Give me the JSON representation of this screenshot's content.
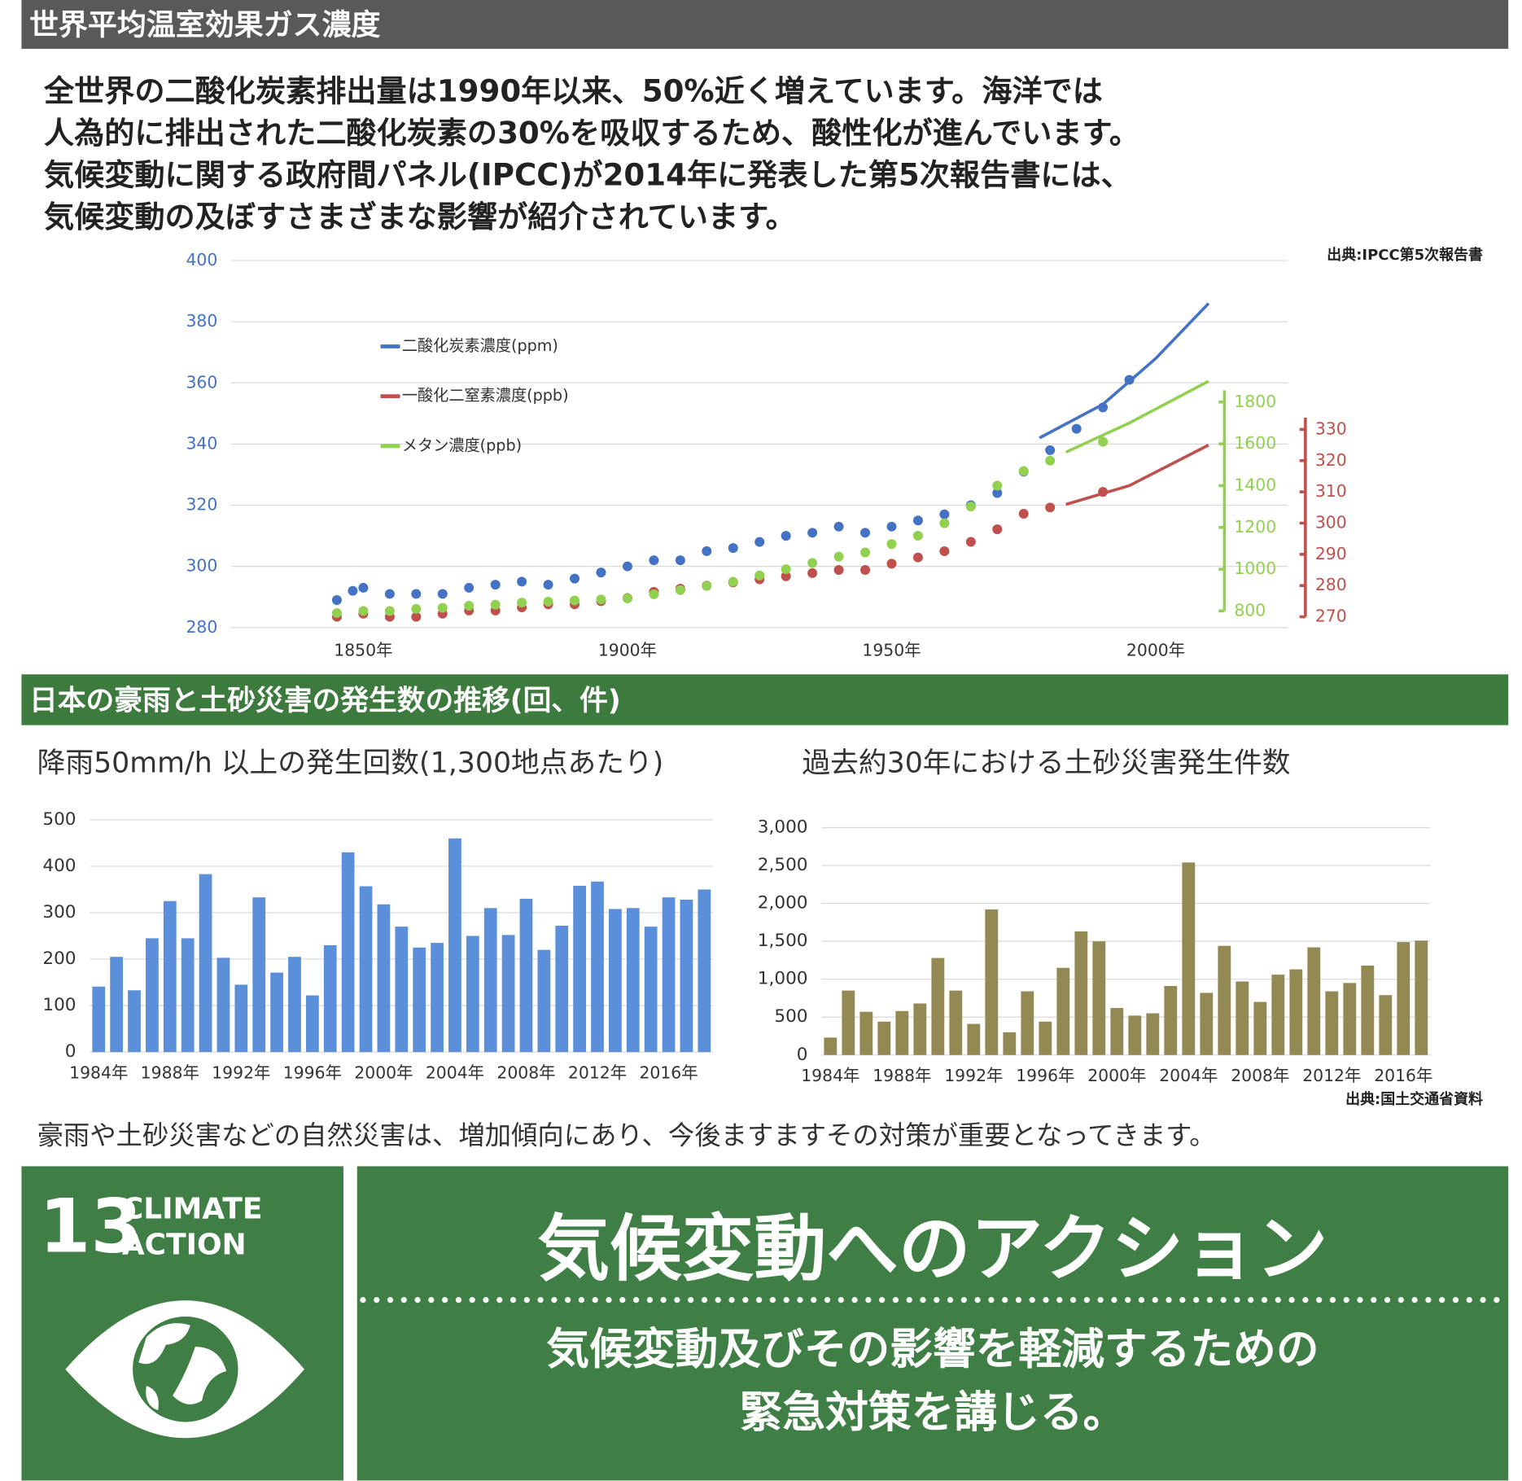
{
  "header1": "世界平均温室効果ガス濃度",
  "intro": [
    "全世界の二酸化炭素排出量は1990年以来、50%近く増えています。海洋では",
    "人為的に排出された二酸化炭素の30%を吸収するため、酸性化が進んでいます。",
    "気候変動に関する政府間パネル(IPCC)が2014年に発表した第5次報告書には、",
    "気候変動の及ぼすさまざまな影響が紹介されています。"
  ],
  "source1": "出典:IPCC第5次報告書",
  "header2": "日本の豪雨と土砂災害の発生数の推移(回、件)",
  "chart_data": [
    {
      "type": "scatter",
      "xlim": [
        1825,
        2025
      ],
      "xticks": [
        {
          "value": 1850,
          "label": "1850年"
        },
        {
          "value": 1900,
          "label": "1900年"
        },
        {
          "value": 1950,
          "label": "1950年"
        },
        {
          "value": 2000,
          "label": "2000年"
        }
      ],
      "ylim": [
        280,
        400
      ],
      "yticks": [
        280,
        300,
        320,
        340,
        360,
        380,
        400
      ],
      "y2lim": [
        800,
        1800
      ],
      "y2ticks": [
        800,
        1000,
        1200,
        1400,
        1600,
        1800
      ],
      "y3lim": [
        270,
        330
      ],
      "y3ticks": [
        270,
        280,
        290,
        300,
        310,
        320,
        330
      ],
      "grid": true,
      "series": [
        {
          "name": "二酸化炭素濃度(ppm)",
          "color": "#4472c4",
          "axis": "y",
          "x": [
            1845,
            1848,
            1850,
            1855,
            1860,
            1865,
            1870,
            1875,
            1880,
            1885,
            1890,
            1895,
            1900,
            1905,
            1910,
            1915,
            1920,
            1925,
            1930,
            1935,
            1940,
            1945,
            1950,
            1955,
            1960,
            1965,
            1970,
            1975,
            1980,
            1985,
            1990,
            1995
          ],
          "values": [
            289,
            292,
            293,
            291,
            291,
            291,
            293,
            294,
            295,
            294,
            296,
            298,
            300,
            302,
            302,
            305,
            306,
            308,
            310,
            311,
            313,
            311,
            313,
            315,
            317,
            320,
            324,
            331,
            338,
            345,
            352,
            361
          ],
          "line_x": [
            1978,
            1990,
            2000,
            2010
          ],
          "line_values": [
            342,
            353,
            368,
            386
          ]
        },
        {
          "name": "一酸化二窒素濃度(ppb)",
          "color": "#c0504d",
          "axis": "y3",
          "x": [
            1845,
            1850,
            1855,
            1860,
            1865,
            1870,
            1875,
            1880,
            1885,
            1890,
            1895,
            1900,
            1905,
            1910,
            1915,
            1920,
            1925,
            1930,
            1935,
            1940,
            1945,
            1950,
            1955,
            1960,
            1965,
            1970,
            1975,
            1980,
            1990
          ],
          "values": [
            270,
            271,
            270,
            270,
            271,
            272,
            272,
            273,
            274,
            274,
            275,
            276,
            278,
            279,
            280,
            281,
            282,
            283,
            284,
            285,
            285,
            287,
            289,
            291,
            294,
            298,
            303,
            305,
            310
          ],
          "line_x": [
            1983,
            1995,
            2010
          ],
          "line_values": [
            306,
            312,
            325
          ]
        },
        {
          "name": "メタン濃度(ppb)",
          "color": "#92d050",
          "axis": "y2",
          "x": [
            1845,
            1850,
            1855,
            1860,
            1865,
            1870,
            1875,
            1880,
            1885,
            1890,
            1895,
            1900,
            1905,
            1910,
            1915,
            1920,
            1925,
            1930,
            1935,
            1940,
            1945,
            1950,
            1955,
            1960,
            1965,
            1970,
            1975,
            1980,
            1990
          ],
          "values": [
            790,
            800,
            800,
            810,
            815,
            825,
            830,
            840,
            845,
            850,
            855,
            860,
            880,
            900,
            920,
            940,
            970,
            1000,
            1030,
            1060,
            1080,
            1120,
            1160,
            1220,
            1300,
            1400,
            1470,
            1520,
            1610
          ],
          "line_x": [
            1983,
            1995,
            2010
          ],
          "line_values": [
            1560,
            1700,
            1900
          ]
        }
      ]
    },
    {
      "type": "bar",
      "title": "降雨50mm/h 以上の発生回数(1,300地点あたり)",
      "color": "#5b8fd9",
      "categories": [
        "1984年",
        null,
        null,
        null,
        "1988年",
        null,
        null,
        null,
        "1992年",
        null,
        null,
        null,
        "1996年",
        null,
        null,
        null,
        "2000年",
        null,
        null,
        null,
        "2004年",
        null,
        null,
        null,
        "2008年",
        null,
        null,
        null,
        "2012年",
        null,
        null,
        null,
        "2016年",
        null,
        null
      ],
      "values": [
        141,
        205,
        133,
        245,
        325,
        245,
        383,
        203,
        145,
        333,
        171,
        205,
        122,
        230,
        430,
        357,
        318,
        270,
        225,
        235,
        460,
        250,
        310,
        252,
        330,
        220,
        272,
        358,
        367,
        308,
        310,
        270,
        333,
        328,
        350
      ],
      "ylim": [
        0,
        500
      ],
      "yticks": [
        0,
        100,
        200,
        300,
        400,
        500
      ],
      "grid": true
    },
    {
      "type": "bar",
      "title": "過去約30年における土砂災害発生件数",
      "color": "#938953",
      "categories": [
        "1984年",
        null,
        null,
        null,
        "1988年",
        null,
        null,
        null,
        "1992年",
        null,
        null,
        null,
        "1996年",
        null,
        null,
        null,
        "2000年",
        null,
        null,
        null,
        "2004年",
        null,
        null,
        null,
        "2008年",
        null,
        null,
        null,
        "2012年",
        null,
        null,
        null,
        "2016年",
        null
      ],
      "values": [
        230,
        850,
        570,
        440,
        580,
        680,
        1280,
        850,
        410,
        1920,
        300,
        840,
        440,
        1150,
        1630,
        1500,
        620,
        520,
        550,
        910,
        2540,
        820,
        1440,
        970,
        700,
        1060,
        1130,
        1420,
        840,
        950,
        1180,
        790,
        1490,
        1510
      ],
      "ylim": [
        0,
        3000
      ],
      "yticks": [
        0,
        {
          "value": 500,
          "label": "500"
        },
        {
          "value": 1000,
          "label": "1,000"
        },
        {
          "value": 1500,
          "label": "1,500"
        },
        {
          "value": 2000,
          "label": "2,000"
        },
        {
          "value": 2500,
          "label": "2,500"
        },
        {
          "value": 3000,
          "label": "3,000"
        }
      ],
      "grid": true
    }
  ],
  "source2": "出典:国土交通省資料",
  "note": "豪雨や土砂災害などの自然災害は、増加傾向にあり、今後ますますその対策が重要となってきます。",
  "sdg": {
    "number": "13",
    "label": [
      "CLIMATE",
      "ACTION"
    ],
    "title": "気候変動へのアクション",
    "subtitle": [
      "気候変動及びその影響を軽減するための",
      "緊急対策を講じる。"
    ]
  }
}
